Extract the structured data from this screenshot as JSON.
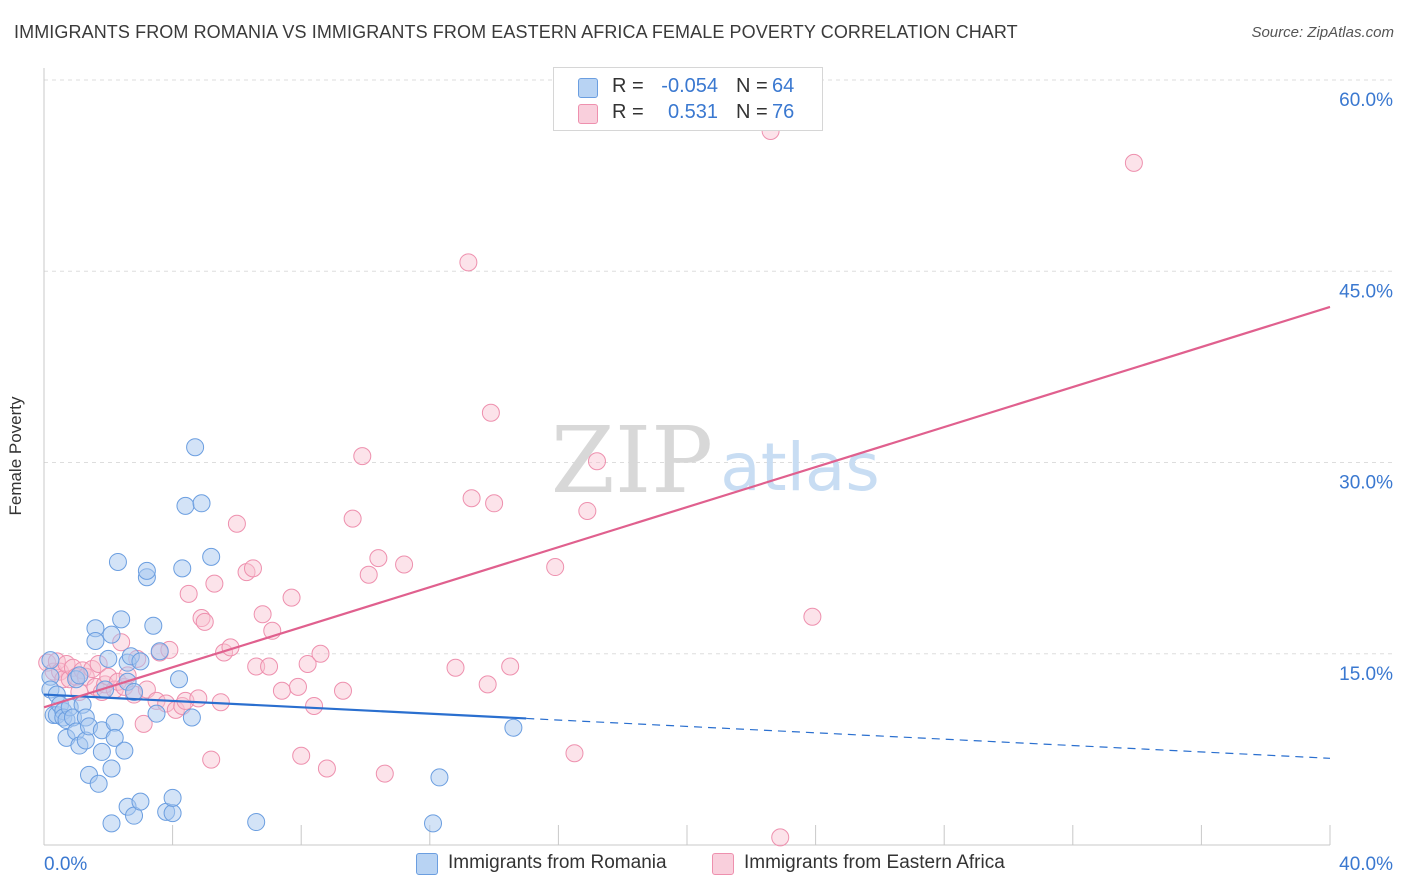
{
  "title": "IMMIGRANTS FROM ROMANIA VS IMMIGRANTS FROM EASTERN AFRICA FEMALE POVERTY CORRELATION CHART",
  "source": "Source: ZipAtlas.com",
  "watermark": {
    "zip": "ZIP",
    "atlas": "atlas"
  },
  "legend_top": {
    "rows": [
      {
        "r_label": "R =",
        "r_value": "-0.054",
        "n_label": "N =",
        "n_value": "64"
      },
      {
        "r_label": "R =",
        "r_value": "0.531",
        "n_label": "N =",
        "n_value": "76"
      }
    ]
  },
  "colors": {
    "romania_fill": "#a8c8f0",
    "romania_stroke": "#6b9ee0",
    "romania_line": "#2a6fcf",
    "eafrica_fill": "#f8c0d0",
    "eafrica_stroke": "#ee90ae",
    "eafrica_line": "#e0608e",
    "tick_label": "#3a78d0",
    "grid": "#dddddd"
  },
  "chart_data": {
    "type": "scatter",
    "title": "IMMIGRANTS FROM ROMANIA VS IMMIGRANTS FROM EASTERN AFRICA FEMALE POVERTY CORRELATION CHART",
    "xlabel": "",
    "ylabel": "Female Poverty",
    "xlim": [
      0,
      40
    ],
    "ylim": [
      0,
      60
    ],
    "x_tick_labels": [
      "0.0%",
      "40.0%"
    ],
    "y_ticks": [
      15,
      30,
      45,
      60
    ],
    "y_tick_labels": [
      "15.0%",
      "30.0%",
      "45.0%",
      "60.0%"
    ],
    "grid": true,
    "legend_position": "bottom",
    "series": [
      {
        "name": "Immigrants from Romania",
        "R": -0.054,
        "N": 64,
        "trend": {
          "x_start": 0,
          "y_start": 11.8,
          "x_end": 40,
          "y_end": 6.8,
          "solid_until_x": 15
        },
        "points": [
          [
            0.2,
            14.5
          ],
          [
            0.2,
            13.2
          ],
          [
            0.2,
            12.2
          ],
          [
            0.3,
            10.2
          ],
          [
            0.4,
            11.8
          ],
          [
            0.4,
            10.2
          ],
          [
            0.5,
            11.0
          ],
          [
            0.6,
            10.5
          ],
          [
            0.6,
            10.0
          ],
          [
            0.7,
            9.8
          ],
          [
            0.7,
            8.4
          ],
          [
            0.8,
            10.8
          ],
          [
            0.9,
            10.0
          ],
          [
            1.0,
            8.9
          ],
          [
            1.0,
            13.0
          ],
          [
            1.1,
            7.8
          ],
          [
            1.1,
            13.3
          ],
          [
            1.2,
            11.0
          ],
          [
            1.3,
            10.0
          ],
          [
            1.3,
            8.2
          ],
          [
            1.4,
            5.5
          ],
          [
            1.4,
            9.3
          ],
          [
            1.6,
            17.0
          ],
          [
            1.6,
            16.0
          ],
          [
            1.7,
            4.8
          ],
          [
            1.8,
            7.3
          ],
          [
            1.8,
            9.0
          ],
          [
            1.9,
            12.2
          ],
          [
            2.0,
            14.6
          ],
          [
            2.1,
            6.0
          ],
          [
            2.1,
            16.5
          ],
          [
            2.2,
            9.6
          ],
          [
            2.2,
            8.4
          ],
          [
            2.3,
            22.2
          ],
          [
            2.4,
            17.7
          ],
          [
            2.5,
            7.4
          ],
          [
            2.6,
            14.3
          ],
          [
            2.6,
            12.8
          ],
          [
            2.7,
            14.8
          ],
          [
            2.8,
            12.0
          ],
          [
            2.1,
            1.7
          ],
          [
            2.6,
            3.0
          ],
          [
            2.8,
            2.3
          ],
          [
            3.0,
            3.4
          ],
          [
            3.0,
            14.4
          ],
          [
            3.2,
            21.0
          ],
          [
            3.2,
            21.5
          ],
          [
            3.4,
            17.2
          ],
          [
            3.5,
            10.3
          ],
          [
            3.6,
            15.2
          ],
          [
            3.8,
            2.6
          ],
          [
            4.0,
            2.5
          ],
          [
            4.0,
            3.7
          ],
          [
            4.2,
            13.0
          ],
          [
            4.3,
            21.7
          ],
          [
            4.4,
            26.6
          ],
          [
            4.6,
            10.0
          ],
          [
            4.7,
            31.2
          ],
          [
            4.9,
            26.8
          ],
          [
            5.2,
            22.6
          ],
          [
            6.6,
            1.8
          ],
          [
            12.1,
            1.7
          ],
          [
            12.3,
            5.3
          ],
          [
            14.6,
            9.2
          ]
        ]
      },
      {
        "name": "Immigrants from Eastern Africa",
        "R": 0.531,
        "N": 76,
        "trend": {
          "x_start": 0,
          "y_start": 10.8,
          "x_end": 40,
          "y_end": 42.2
        },
        "points": [
          [
            0.1,
            14.3
          ],
          [
            0.3,
            13.6
          ],
          [
            0.4,
            14.4
          ],
          [
            0.5,
            13.6
          ],
          [
            0.6,
            13.0
          ],
          [
            0.7,
            14.2
          ],
          [
            0.8,
            13.0
          ],
          [
            0.9,
            13.9
          ],
          [
            1.0,
            13.2
          ],
          [
            1.1,
            12.0
          ],
          [
            1.2,
            13.7
          ],
          [
            1.3,
            13.2
          ],
          [
            1.5,
            13.8
          ],
          [
            1.6,
            12.4
          ],
          [
            1.7,
            14.2
          ],
          [
            1.8,
            12.0
          ],
          [
            1.9,
            12.6
          ],
          [
            2.0,
            13.2
          ],
          [
            2.2,
            12.2
          ],
          [
            2.3,
            12.8
          ],
          [
            2.4,
            15.9
          ],
          [
            2.5,
            12.4
          ],
          [
            2.6,
            13.3
          ],
          [
            2.8,
            11.8
          ],
          [
            2.9,
            14.6
          ],
          [
            3.1,
            9.5
          ],
          [
            3.2,
            12.2
          ],
          [
            3.5,
            11.3
          ],
          [
            3.6,
            15.1
          ],
          [
            3.8,
            11.1
          ],
          [
            3.9,
            15.3
          ],
          [
            4.1,
            10.6
          ],
          [
            4.3,
            10.9
          ],
          [
            4.4,
            11.3
          ],
          [
            4.5,
            19.7
          ],
          [
            4.8,
            11.5
          ],
          [
            4.9,
            17.8
          ],
          [
            5.0,
            17.5
          ],
          [
            5.2,
            6.7
          ],
          [
            5.3,
            20.5
          ],
          [
            5.5,
            11.2
          ],
          [
            5.6,
            15.1
          ],
          [
            5.8,
            15.5
          ],
          [
            6.0,
            25.2
          ],
          [
            6.3,
            21.4
          ],
          [
            6.5,
            21.7
          ],
          [
            6.6,
            14.0
          ],
          [
            6.8,
            18.1
          ],
          [
            7.0,
            14.0
          ],
          [
            7.1,
            16.8
          ],
          [
            7.4,
            12.1
          ],
          [
            7.7,
            19.4
          ],
          [
            7.9,
            12.4
          ],
          [
            8.0,
            7.0
          ],
          [
            8.2,
            14.2
          ],
          [
            8.4,
            10.9
          ],
          [
            8.6,
            15.0
          ],
          [
            8.8,
            6.0
          ],
          [
            9.3,
            12.1
          ],
          [
            9.6,
            25.6
          ],
          [
            9.9,
            30.5
          ],
          [
            10.1,
            21.2
          ],
          [
            10.4,
            22.5
          ],
          [
            10.6,
            5.6
          ],
          [
            11.2,
            22.0
          ],
          [
            12.8,
            13.9
          ],
          [
            13.2,
            45.7
          ],
          [
            13.3,
            27.2
          ],
          [
            13.8,
            12.6
          ],
          [
            13.9,
            33.9
          ],
          [
            14.0,
            26.8
          ],
          [
            14.5,
            14.0
          ],
          [
            15.9,
            21.8
          ],
          [
            16.5,
            7.2
          ],
          [
            16.9,
            26.2
          ],
          [
            17.2,
            30.1
          ]
        ],
        "outliers": [
          [
            22.6,
            56.0
          ],
          [
            22.9,
            0.6
          ],
          [
            23.9,
            17.9
          ],
          [
            33.9,
            53.5
          ]
        ]
      }
    ]
  },
  "legend_bottom": {
    "items": [
      {
        "label": "Immigrants from Romania"
      },
      {
        "label": "Immigrants from Eastern Africa"
      }
    ]
  }
}
